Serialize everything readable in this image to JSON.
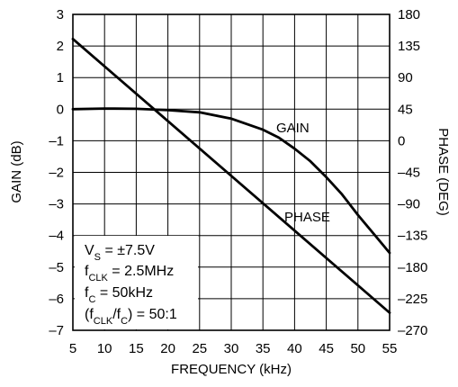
{
  "chart_data": {
    "type": "line",
    "title": "",
    "xlabel": "FREQUENCY (kHz)",
    "ylabel": "GAIN (dB)",
    "y2label": "PHASE (DEG)",
    "xlim": [
      5,
      55
    ],
    "ylim": [
      -7,
      3
    ],
    "y2lim": [
      -270,
      180
    ],
    "x_ticks": [
      "5",
      "10",
      "15",
      "20",
      "25",
      "30",
      "35",
      "40",
      "45",
      "50",
      "55"
    ],
    "y_ticks": [
      "3",
      "2",
      "1",
      "0",
      "–1",
      "–2",
      "–3",
      "–4",
      "–5",
      "–6",
      "–7"
    ],
    "y2_ticks": [
      "180",
      "135",
      "90",
      "45",
      "0",
      "–45",
      "–90",
      "–135",
      "–180",
      "–225",
      "–270"
    ],
    "grid": true,
    "series": [
      {
        "name": "GAIN",
        "axis": "left",
        "x": [
          5,
          10,
          15,
          20,
          25,
          30,
          35,
          37.5,
          40,
          42.5,
          45,
          47.5,
          50,
          52.5,
          55
        ],
        "y": [
          0,
          0.02,
          0.01,
          -0.03,
          -0.1,
          -0.3,
          -0.65,
          -0.9,
          -1.25,
          -1.65,
          -2.15,
          -2.7,
          -3.35,
          -3.95,
          -4.55
        ]
      },
      {
        "name": "PHASE",
        "axis": "right",
        "x": [
          5,
          55
        ],
        "y": [
          145,
          -245
        ]
      }
    ],
    "annotations": [
      {
        "main": "V",
        "sub": "S",
        "rest": " = ±7.5V"
      },
      {
        "main": "f",
        "sub": "CLK",
        "rest": " = 2.5MHz"
      },
      {
        "main": "f",
        "sub": "C",
        "rest": " = 50kHz"
      },
      {
        "pre": "(f",
        "sub": "CLK",
        "mid": "/f",
        "sub2": "C",
        "rest": ") = 50:1"
      }
    ],
    "colors": {
      "line": "#000000",
      "grid": "#000000",
      "background": "#ffffff"
    }
  }
}
